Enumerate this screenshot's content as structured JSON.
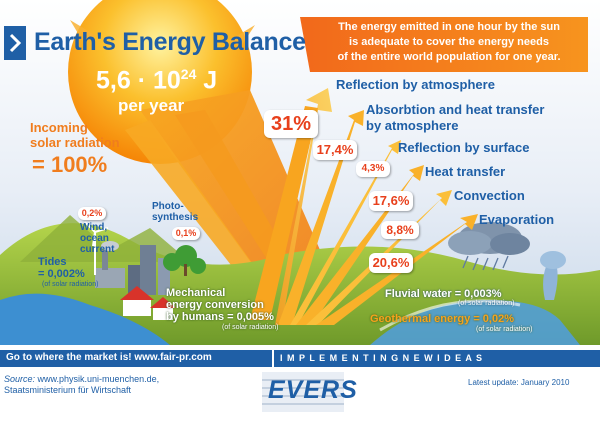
{
  "header": {
    "title": "Earth's Energy Balance",
    "banner_lines": [
      "The energy emitted in one hour by the sun",
      "is adequate to cover the energy needs",
      "of the entire world population for one year."
    ]
  },
  "sun": {
    "value_main": "5,6 · 10",
    "value_exp": "24",
    "value_unit": " J",
    "per_year": "per year"
  },
  "incoming": {
    "line1": "Incoming",
    "line2": "solar radiation",
    "value": "= 100%"
  },
  "flows": [
    {
      "pct": "31%",
      "label": "Reflection by atmosphere"
    },
    {
      "pct": "17,4%",
      "label_line1": "Absorbtion and heat transfer",
      "label_line2": "by atmosphere"
    },
    {
      "pct": "4,3%",
      "label": "Reflection by surface"
    },
    {
      "pct": "17,6%",
      "label": "Heat transfer"
    },
    {
      "pct": "8,8%",
      "label": "Convection"
    },
    {
      "pct": "20,6%",
      "label": "Evaporation"
    }
  ],
  "minor": {
    "wind_pct": "0,2%",
    "wind_label": [
      "Wind,",
      "ocean",
      "current"
    ],
    "photo_label": [
      "Photo-",
      "synthesis"
    ],
    "photo_pct": "0,1%",
    "tides_label": "Tides",
    "tides_value": "= 0,002%",
    "tides_note": "(of solar radiation)",
    "mech_label": [
      "Mechanical",
      "energy conversion",
      "by humans = 0,005%"
    ],
    "mech_note": "(of solar radiation)",
    "fluvial_label": "Fluvial water = 0,003%",
    "fluvial_note": "(of solar radiation)",
    "geo_label": "Geothermal energy = 0,02%",
    "geo_note": "(of solar radiation)"
  },
  "footer_bar": {
    "left": "Go to where the market is!  www.fair-pr.com",
    "right": "I M P L E M E N T I N G    N E W    I D E A S"
  },
  "footer": {
    "source_label": "Source:",
    "source_text": " www.physik.uni-muenchen.de,",
    "source_line2": "Staatsministerium für Wirtschaft",
    "logo": "EVERS",
    "updated": "Latest update: January 2010"
  },
  "colors": {
    "brand_blue": "#1f5fa6",
    "banner_orange": "#f07d1e",
    "arrow_orange": "#f7a21b",
    "pct_red": "#e8401c",
    "sky": "#dfe8f3",
    "grass": "#9cc53b"
  }
}
